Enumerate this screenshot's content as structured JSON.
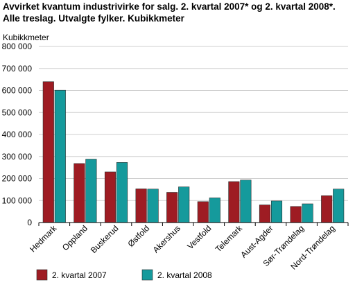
{
  "chart_data": {
    "type": "bar",
    "title": "Avvirket kvantum industrivirke for salg. 2. kvartal 2007* og 2. kvartal 2008*. Alle treslag. Utvalgte fylker. Kubikkmeter",
    "ylabel": "Kubikkmeter",
    "xlabel": "",
    "ylim": [
      0,
      800000
    ],
    "yticks": [
      0,
      100000,
      200000,
      300000,
      400000,
      500000,
      600000,
      700000,
      800000
    ],
    "ytick_labels": [
      "0",
      "100 000",
      "200 000",
      "300 000",
      "400 000",
      "500 000",
      "600 000",
      "700 000",
      "800 000"
    ],
    "categories": [
      "Hedmark",
      "Oppland",
      "Buskerud",
      "Østfold",
      "Akershus",
      "Vestfold",
      "Telemark",
      "Aust-Agder",
      "Sør-Trøndelag",
      "Nord-Trøndelag"
    ],
    "series": [
      {
        "name": "2. kvartal 2007",
        "color": "#9e1c23",
        "values": [
          640000,
          268000,
          230000,
          153000,
          137000,
          95000,
          186000,
          80000,
          73000,
          122000
        ]
      },
      {
        "name": "2. kvartal 2008",
        "color": "#159a9c",
        "values": [
          601000,
          288000,
          273000,
          152000,
          162000,
          112000,
          193000,
          98000,
          85000,
          152000
        ]
      }
    ],
    "grid": true,
    "legend_position": "bottom"
  }
}
